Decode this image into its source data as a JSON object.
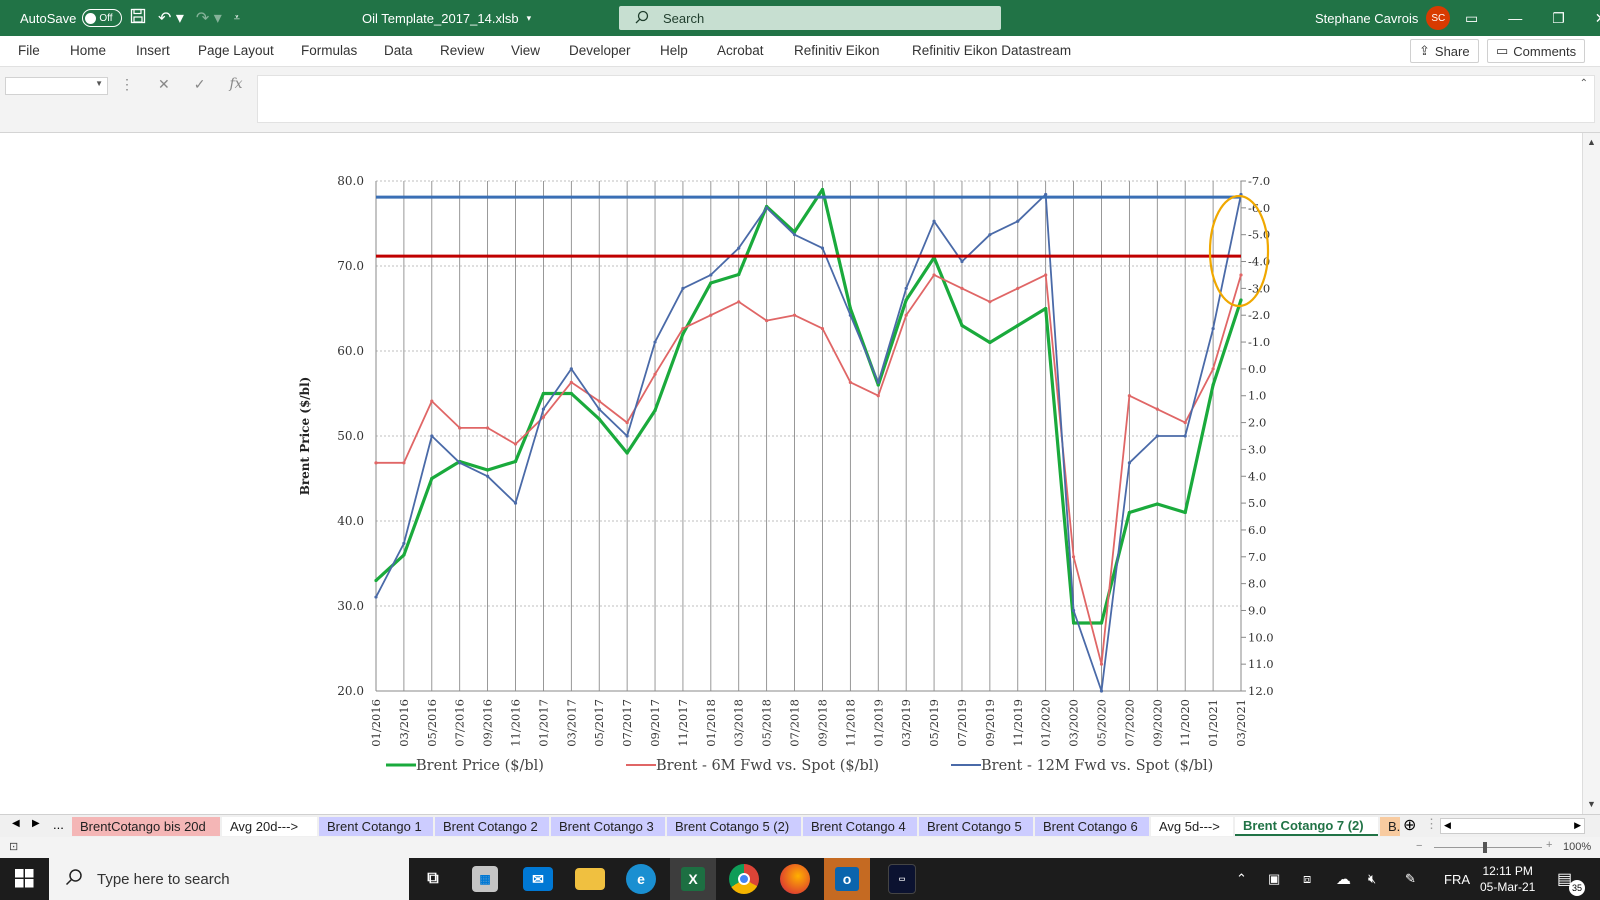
{
  "titlebar": {
    "autosave_label": "AutoSave",
    "autosave_state": "Off",
    "filename": "Oil Template_2017_14.xlsb",
    "search_placeholder": "Search",
    "user_name": "Stephane Cavrois",
    "user_initials": "SC"
  },
  "menu": [
    "File",
    "Home",
    "Insert",
    "Page Layout",
    "Formulas",
    "Data",
    "Review",
    "View",
    "Developer",
    "Help",
    "Acrobat",
    "Refinitiv Eikon",
    "Refinitiv Eikon Datastream"
  ],
  "actions": {
    "share": "Share",
    "comments": "Comments"
  },
  "formula_bar": {
    "name_box": "",
    "fx": "fx",
    "value": ""
  },
  "chart_data": {
    "type": "line",
    "ylabel": "Brent Price ($/bl)",
    "ylim": [
      20,
      80
    ],
    "y_ticks": [
      "80.0",
      "70.0",
      "60.0",
      "50.0",
      "40.0",
      "30.0",
      "20.0"
    ],
    "y2lim": [
      -7,
      12
    ],
    "y2_ticks": [
      "-7.0",
      "-6.0",
      "-5.0",
      "-4.0",
      "-3.0",
      "-2.0",
      "-1.0",
      "0.0",
      "1.0",
      "2.0",
      "3.0",
      "4.0",
      "5.0",
      "6.0",
      "7.0",
      "8.0",
      "9.0",
      "10.0",
      "11.0",
      "12.0"
    ],
    "categories": [
      "01/2016",
      "03/2016",
      "05/2016",
      "07/2016",
      "09/2016",
      "11/2016",
      "01/2017",
      "03/2017",
      "05/2017",
      "07/2017",
      "09/2017",
      "11/2017",
      "01/2018",
      "03/2018",
      "05/2018",
      "07/2018",
      "09/2018",
      "11/2018",
      "01/2019",
      "03/2019",
      "05/2019",
      "07/2019",
      "09/2019",
      "11/2019",
      "01/2020",
      "03/2020",
      "05/2020",
      "07/2020",
      "09/2020",
      "11/2020",
      "01/2021",
      "03/2021"
    ],
    "legend_position": "bottom",
    "grid": true,
    "reference_lines": [
      {
        "axis": "y2",
        "value": -6.4,
        "color": "#3a6fb5"
      },
      {
        "axis": "y2",
        "value": -4.2,
        "color": "#c00000"
      }
    ],
    "highlight": {
      "type": "ellipse",
      "color": "#f0a800",
      "around": "03/2021"
    },
    "series": [
      {
        "name": "Brent Price ($/bl)",
        "axis": "y",
        "color": "#1aaa3c",
        "values": [
          33,
          36,
          45,
          47,
          46,
          47,
          55,
          55,
          52,
          48,
          53,
          62,
          68,
          69,
          77,
          74,
          79,
          65,
          56,
          66,
          71,
          63,
          61,
          63,
          65,
          28,
          28,
          41,
          42,
          41,
          56,
          66
        ]
      },
      {
        "name": "Brent - 6M Fwd vs. Spot ($/bl)",
        "axis": "y2",
        "color": "#e06666",
        "values": [
          3.5,
          3.5,
          1.2,
          2.2,
          2.2,
          2.8,
          1.8,
          0.5,
          1.2,
          2.0,
          0.2,
          -1.5,
          -2.0,
          -2.5,
          -1.8,
          -2.0,
          -1.5,
          0.5,
          1.0,
          -2.0,
          -3.5,
          -3.0,
          -2.5,
          -3.0,
          -3.5,
          7.0,
          11.0,
          1.0,
          1.5,
          2.0,
          0.0,
          -3.5
        ]
      },
      {
        "name": "Brent - 12M Fwd vs. Spot ($/bl)",
        "axis": "y2",
        "color": "#4a6aa8",
        "values": [
          8.5,
          6.5,
          2.5,
          3.5,
          4.0,
          5.0,
          1.5,
          0.0,
          1.5,
          2.5,
          -1.0,
          -3.0,
          -3.5,
          -4.5,
          -6.0,
          -5.0,
          -4.5,
          -2.0,
          0.5,
          -3.0,
          -5.5,
          -4.0,
          -5.0,
          -5.5,
          -6.5,
          9.0,
          12.0,
          3.5,
          2.5,
          2.5,
          -1.5,
          -6.5
        ]
      }
    ]
  },
  "sheet_tabs": [
    {
      "label": "BrentCotango bis 20d",
      "color": "#f4b6b6"
    },
    {
      "label": "Avg 20d--->",
      "color": "#ffffff"
    },
    {
      "label": "Brent Cotango 1",
      "color": "#ccccff"
    },
    {
      "label": "Brent Cotango 2",
      "color": "#ccccff"
    },
    {
      "label": "Brent Cotango 3",
      "color": "#ccccff"
    },
    {
      "label": "Brent Cotango 5 (2)",
      "color": "#ccccff"
    },
    {
      "label": "Brent Cotango 4",
      "color": "#ccccff"
    },
    {
      "label": "Brent Cotango 5",
      "color": "#ccccff"
    },
    {
      "label": "Brent Cotango 6",
      "color": "#ccccff"
    },
    {
      "label": "Avg 5d--->",
      "color": "#ffffff"
    },
    {
      "label": "Brent Cotango 7 (2)",
      "color": "#ffffff",
      "active": true
    },
    {
      "label": "B...",
      "color": "#f8cba0"
    }
  ],
  "tab_nav_more": "...",
  "status": {
    "zoom": "100%"
  },
  "taskbar": {
    "search_placeholder": "Type here to search",
    "language": "FRA",
    "time": "12:11 PM",
    "date": "05-Mar-21",
    "notification_count": "35",
    "apps": [
      "task-view",
      "store",
      "mail",
      "explorer",
      "edge",
      "excel",
      "chrome",
      "firefox",
      "outlook",
      "trader"
    ]
  }
}
